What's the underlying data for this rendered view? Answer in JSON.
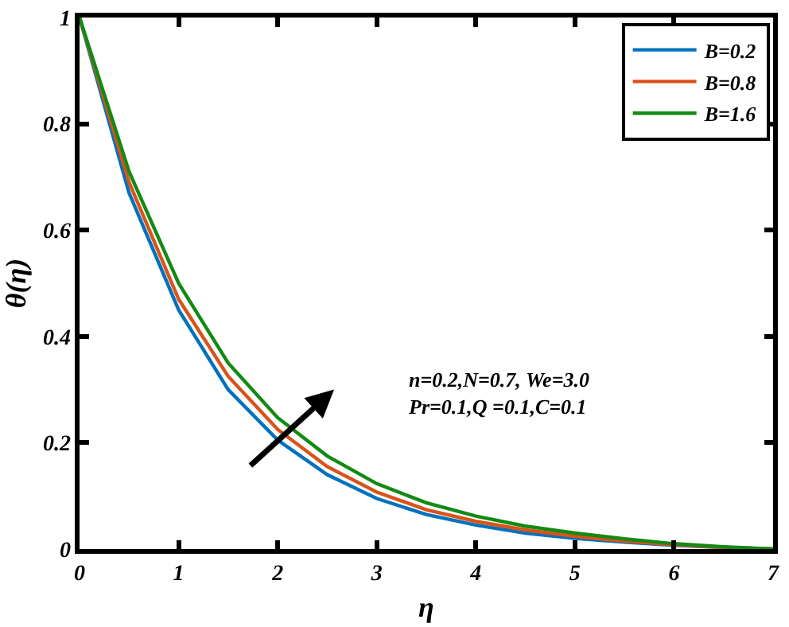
{
  "chart_data": {
    "type": "line",
    "xlabel": "η",
    "ylabel": "θ(η)",
    "x": [
      0,
      0.5,
      1,
      1.5,
      2,
      2.5,
      3,
      3.5,
      4,
      4.5,
      5,
      5.5,
      6,
      6.5,
      7
    ],
    "series": [
      {
        "name": "B=0.2",
        "color": "#0072bd",
        "values": [
          1,
          0.67,
          0.45,
          0.3,
          0.205,
          0.14,
          0.095,
          0.065,
          0.045,
          0.03,
          0.02,
          0.013,
          0.007,
          0.003,
          0
        ]
      },
      {
        "name": "B=0.8",
        "color": "#d95319",
        "values": [
          1,
          0.69,
          0.47,
          0.325,
          0.225,
          0.155,
          0.107,
          0.074,
          0.052,
          0.036,
          0.024,
          0.015,
          0.008,
          0.003,
          0
        ]
      },
      {
        "name": "B=1.6",
        "color": "#138a13",
        "values": [
          1,
          0.71,
          0.5,
          0.35,
          0.247,
          0.175,
          0.123,
          0.087,
          0.062,
          0.043,
          0.03,
          0.019,
          0.01,
          0.004,
          0
        ]
      }
    ],
    "xlim": [
      0,
      7
    ],
    "xticks": [
      0,
      1,
      2,
      3,
      4,
      5,
      6,
      7
    ],
    "ylim": [
      0,
      1
    ],
    "yticks": [
      0,
      0.2,
      0.4,
      0.6,
      0.8,
      1
    ],
    "legend": "top right",
    "marker": "none",
    "line_style": "solid",
    "annotations": [
      "n=0.2,N=0.7, We=3.0\nPr=0.1,Q =0.1,C=0.1"
    ]
  }
}
